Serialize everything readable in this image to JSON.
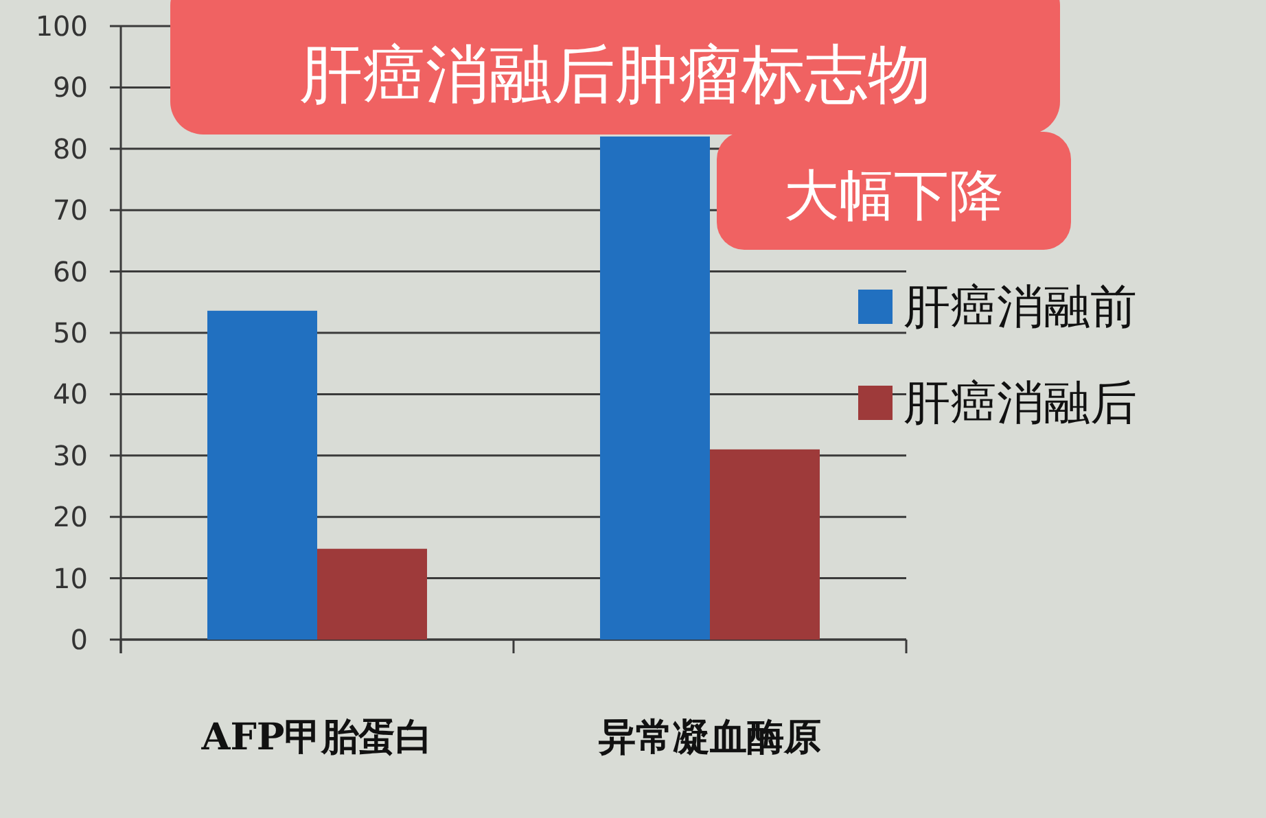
{
  "chart_data": {
    "type": "bar",
    "title": "肝癌消融后肿瘤标志物",
    "subtitle": "大幅下降",
    "categories": [
      "AFP甲胎蛋白",
      "异常凝血酶原"
    ],
    "series": [
      {
        "name": "肝癌消融前",
        "color": "#2170c0",
        "values": [
          53.6,
          82
        ]
      },
      {
        "name": "肝癌消融后",
        "color": "#9e3a3a",
        "values": [
          14.8,
          31
        ]
      }
    ],
    "ylim": [
      0,
      100
    ],
    "yticks": [
      0,
      10,
      20,
      30,
      40,
      50,
      60,
      70,
      80,
      90,
      100
    ],
    "grid": "y",
    "legend": "right"
  }
}
